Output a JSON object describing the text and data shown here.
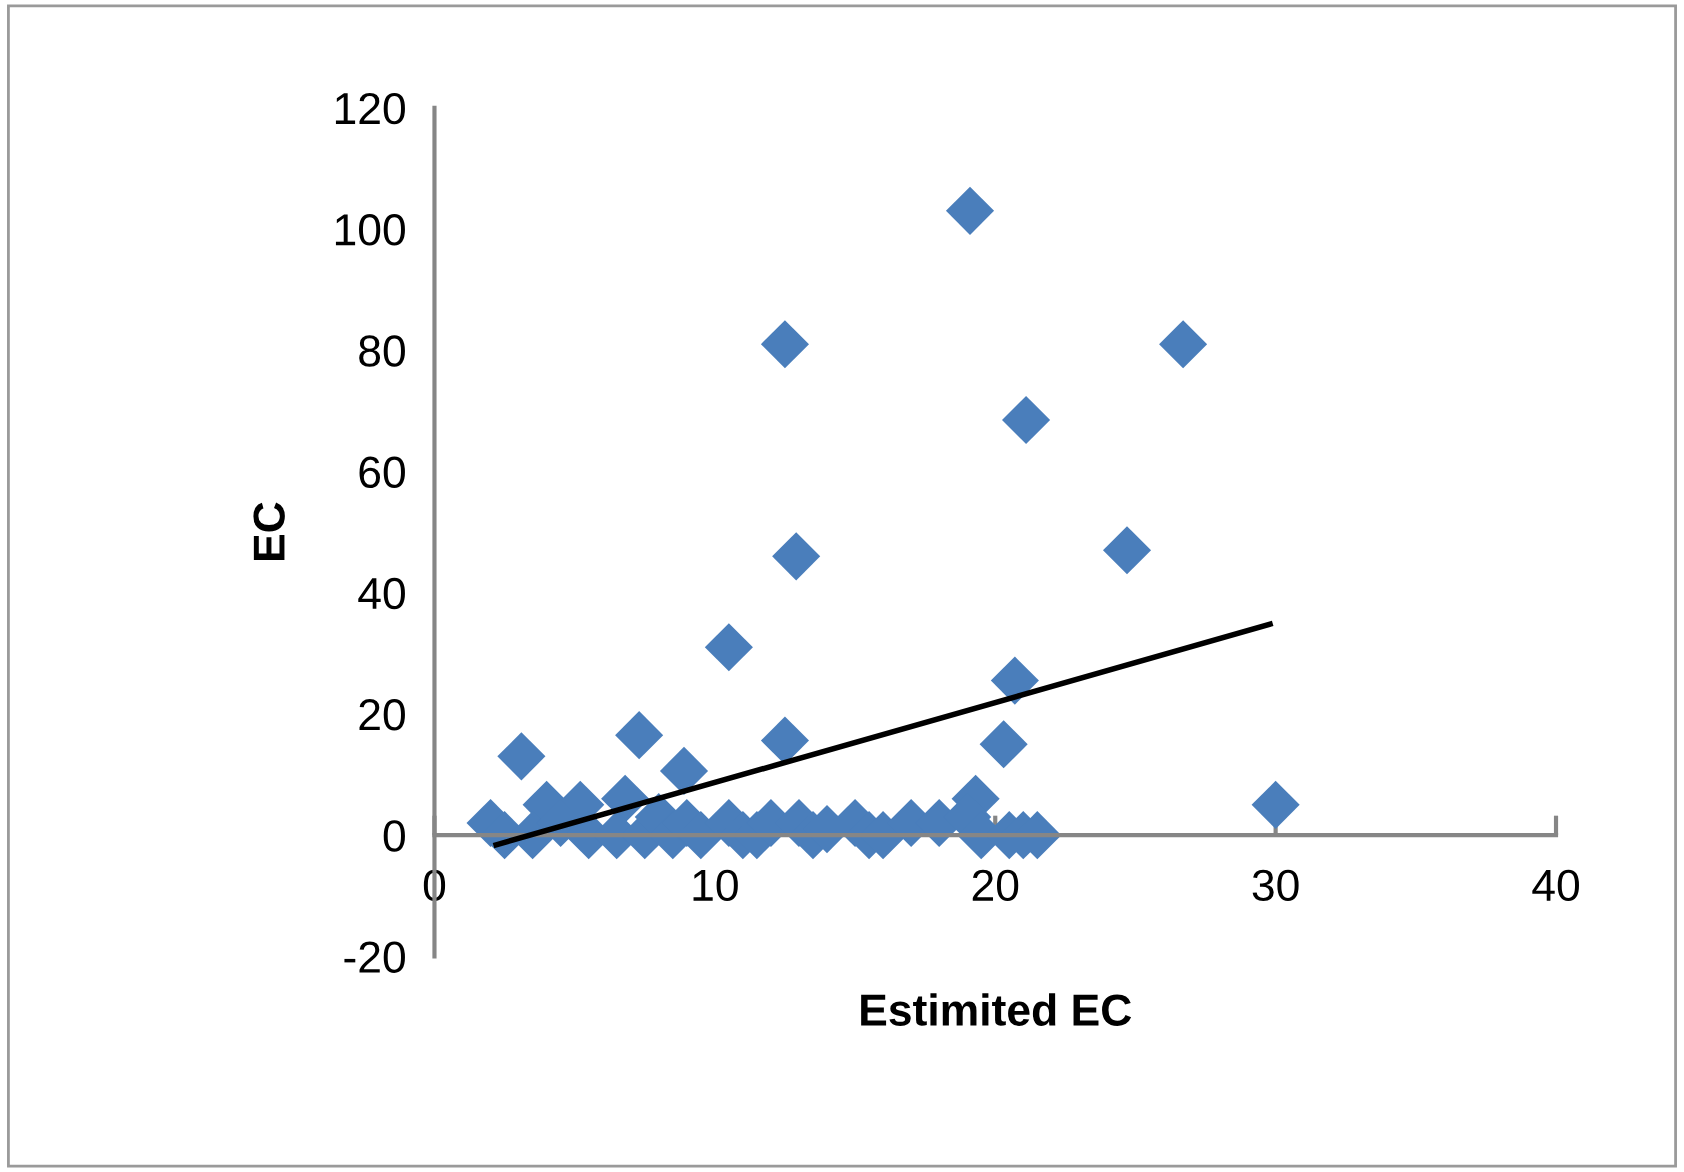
{
  "chart_data": {
    "type": "scatter",
    "xlabel": "Estimited EC",
    "ylabel": "EC",
    "xlim": [
      0,
      40
    ],
    "ylim": [
      -20,
      120
    ],
    "xticks": [
      0,
      10,
      20,
      30,
      40
    ],
    "yticks": [
      -20,
      0,
      20,
      40,
      60,
      80,
      100,
      120
    ],
    "grid": false,
    "legend": false,
    "marker": "diamond",
    "series": [
      {
        "color": "#4a7ebb",
        "x": [
          19.1,
          12.5,
          26.7,
          21.1,
          24.7,
          12.9,
          10.5,
          20.7,
          12.5,
          20.3,
          7.3,
          3.1,
          8.9,
          19.3,
          30.0,
          4.0,
          5.2,
          6.8,
          2.0,
          2.5,
          3.5,
          4.5,
          5.5,
          6.0,
          6.5,
          7.0,
          7.5,
          8.0,
          8.5,
          9.0,
          9.5,
          10.0,
          10.5,
          11.0,
          11.5,
          12.0,
          13.0,
          13.5,
          14.0,
          15.0,
          15.5,
          16.0,
          16.5,
          17.0,
          18.0,
          19.0,
          19.5,
          20.5,
          21.0,
          21.5
        ],
        "values": [
          103,
          81,
          81,
          68.5,
          47,
          46,
          31,
          25.5,
          15.6,
          15,
          16.5,
          13,
          10.6,
          6,
          5,
          5,
          5,
          6,
          2,
          0,
          0,
          2,
          0,
          null,
          0,
          null,
          0,
          3,
          0,
          2,
          0,
          null,
          2,
          0,
          0,
          2,
          2,
          0,
          1,
          2,
          0,
          0,
          null,
          2,
          2,
          3,
          0,
          0,
          0,
          0
        ]
      },
      {
        "type": "line",
        "color": "#000000",
        "marker": "none",
        "x": [
          2.2,
          29.8
        ],
        "values": [
          -1.6,
          34.8
        ]
      }
    ]
  }
}
